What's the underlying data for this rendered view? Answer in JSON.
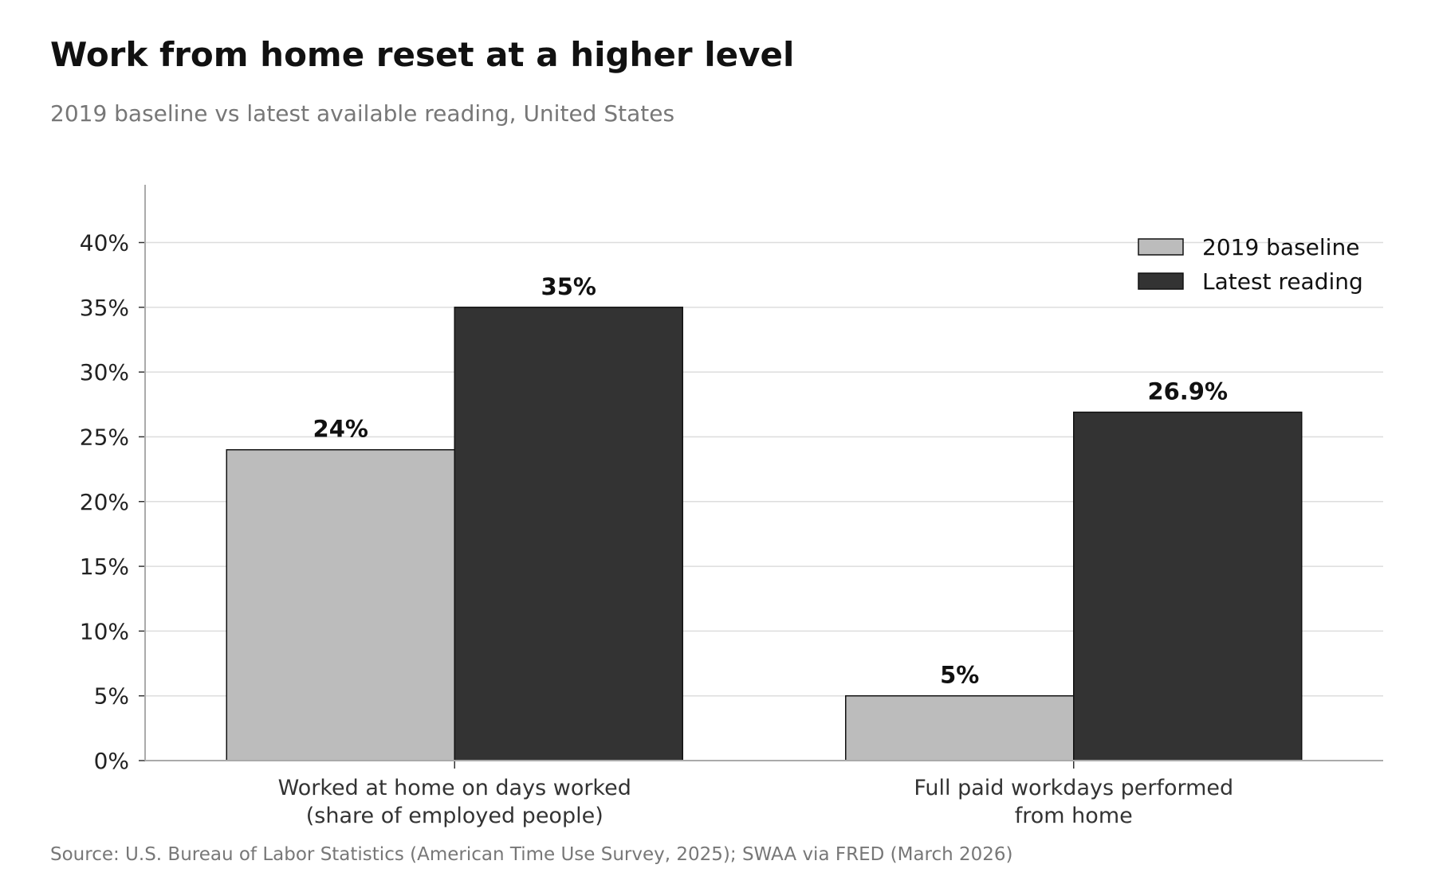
{
  "chart_data": {
    "type": "bar",
    "title": "Work from home reset at a higher level",
    "subtitle": "2019 baseline vs latest available reading, United States",
    "source": "Source: U.S. Bureau of Labor Statistics (American Time Use Survey, 2025); SWAA via FRED (March 2026)",
    "categories": [
      [
        "Worked at home on days worked",
        "(share of employed people)"
      ],
      [
        "Full paid workdays performed",
        "from home"
      ]
    ],
    "series": [
      {
        "name": "2019 baseline",
        "values": [
          24,
          5
        ],
        "labels": [
          "24%",
          "5%"
        ],
        "color": "#bcbcbc"
      },
      {
        "name": "Latest reading",
        "values": [
          35,
          26.9
        ],
        "labels": [
          "35%",
          "26.9%"
        ],
        "color": "#333333"
      }
    ],
    "y_ticks": [
      0,
      5,
      10,
      15,
      20,
      25,
      30,
      35,
      40
    ],
    "y_tick_labels": [
      "0%",
      "5%",
      "10%",
      "15%",
      "20%",
      "25%",
      "30%",
      "35%",
      "40%"
    ],
    "ylim": [
      0,
      42
    ],
    "grid": true,
    "legend_position": "top-right",
    "xlabel": "",
    "ylabel": ""
  }
}
